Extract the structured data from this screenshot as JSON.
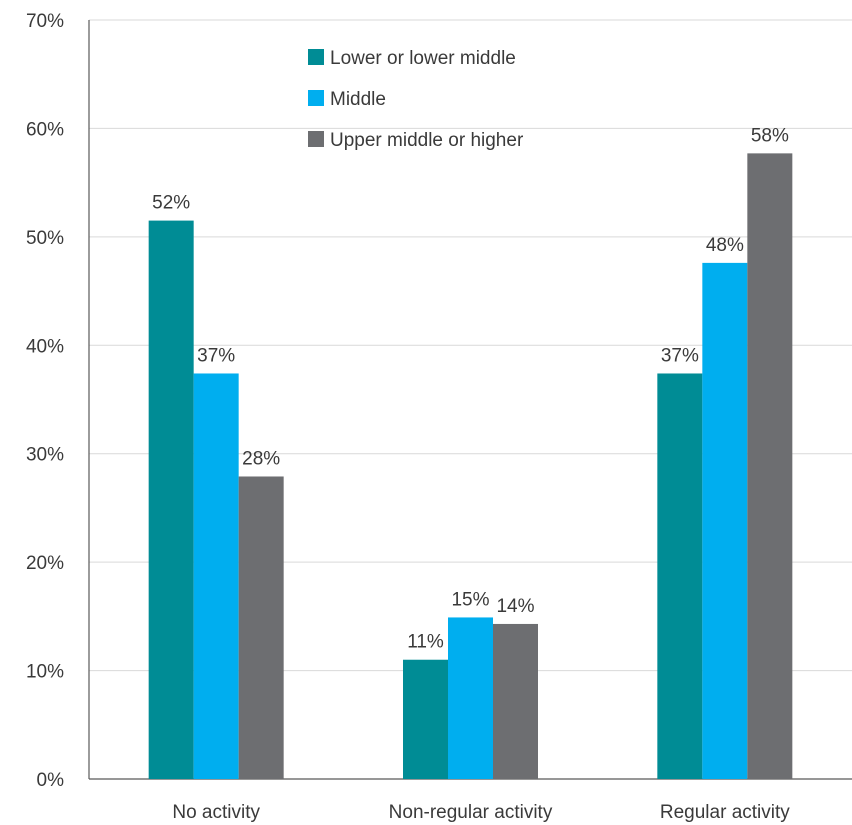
{
  "chart_data": {
    "type": "bar",
    "categories": [
      "No activity",
      "Non-regular activity",
      "Regular activity"
    ],
    "series": [
      {
        "name": "Lower or lower middle",
        "values": [
          51.5,
          11.0,
          37.4
        ],
        "labels": [
          "52%",
          "11%",
          "37%"
        ],
        "color": "#008c95"
      },
      {
        "name": "Middle",
        "values": [
          37.4,
          14.9,
          47.6
        ],
        "labels": [
          "37%",
          "15%",
          "48%"
        ],
        "color": "#00aeef"
      },
      {
        "name": "Upper middle or higher",
        "values": [
          27.9,
          14.3,
          57.7
        ],
        "labels": [
          "28%",
          "14%",
          "58%"
        ],
        "color": "#6d6e71"
      }
    ],
    "ylim": [
      0,
      70
    ],
    "yticks": [
      0,
      10,
      20,
      30,
      40,
      50,
      60,
      70
    ],
    "ytick_labels": [
      "0%",
      "10%",
      "20%",
      "30%",
      "40%",
      "50%",
      "60%",
      "70%"
    ],
    "grid": true,
    "legend_position": "top-center",
    "gridline_color": "#d9d9d9",
    "axis_color": "#595959"
  }
}
